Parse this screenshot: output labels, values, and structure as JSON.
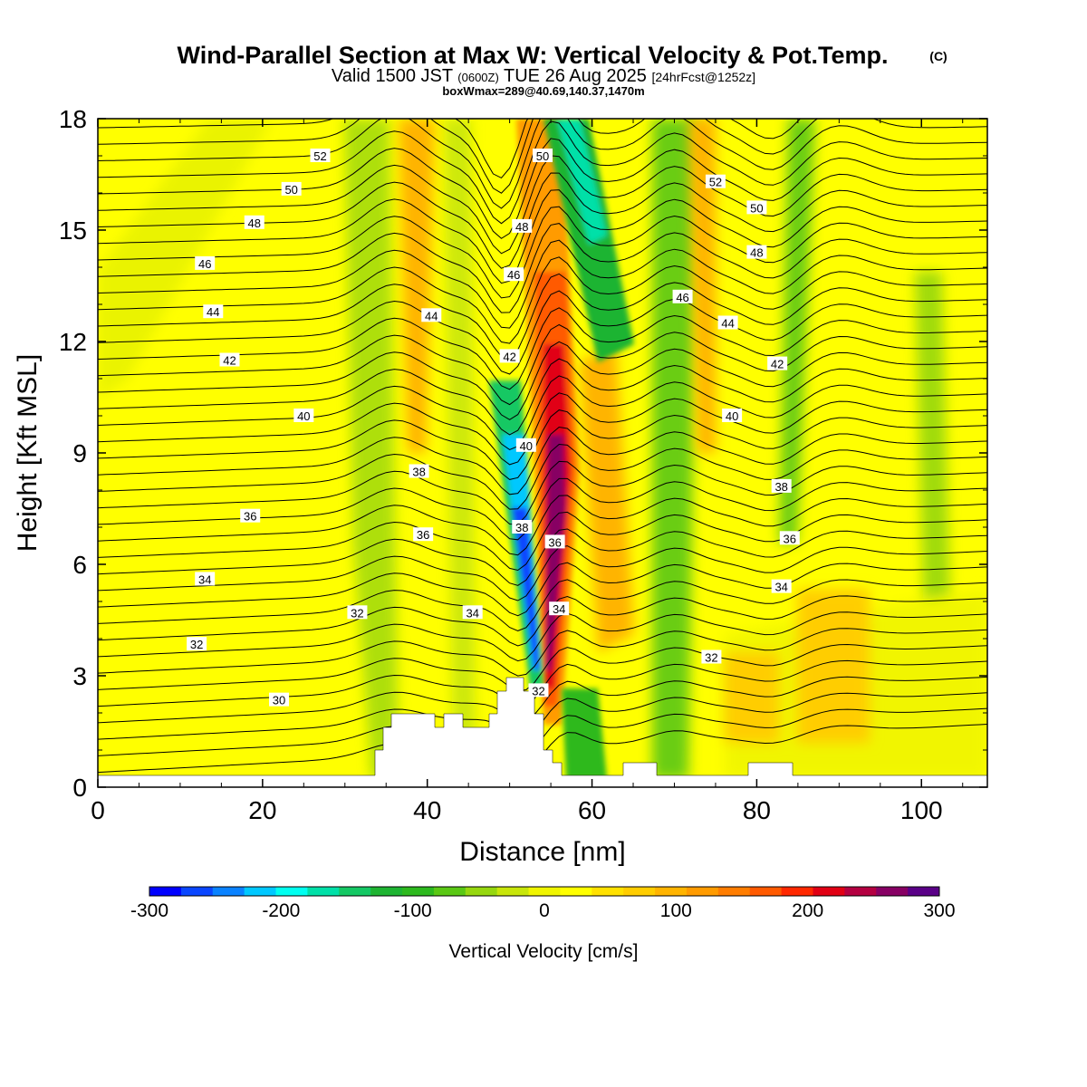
{
  "chart_data": {
    "type": "heatmap",
    "title": "Wind-Parallel Section at Max W: Vertical Velocity & Pot.Temp.",
    "title_mark": "(C)",
    "subtitle_main": "Valid 1500 JST",
    "subtitle_zulu": "(0600Z)",
    "subtitle_date": "TUE 26 Aug 2025",
    "subtitle_fcst": "[24hrFcst@1252z]",
    "info_line": "boxWmax=289@40.69,140.37,1470m",
    "xlabel": "Distance [nm]",
    "ylabel": "Height [Kft MSL]",
    "xlim": [
      0,
      108
    ],
    "ylim": [
      0,
      18
    ],
    "x_ticks": [
      "0",
      "20",
      "40",
      "60",
      "80",
      "100"
    ],
    "y_ticks": [
      "0",
      "3",
      "6",
      "9",
      "12",
      "15",
      "18"
    ],
    "colorbar": {
      "label": "Vertical Velocity [cm/s]",
      "range": [
        -300,
        300
      ],
      "tick_labels": [
        "-300",
        "-200",
        "-100",
        "0",
        "100",
        "200",
        "300"
      ],
      "colors": [
        "#0000ff",
        "#0a46ff",
        "#0a82ff",
        "#00c8ff",
        "#00fff0",
        "#00e0a8",
        "#14c864",
        "#1eb432",
        "#2db91e",
        "#5ac814",
        "#96d70f",
        "#c8e60a",
        "#f0f500",
        "#ffff00",
        "#ffe100",
        "#ffcd00",
        "#ffb400",
        "#ff9b00",
        "#ff7d00",
        "#ff5a00",
        "#ff2800",
        "#e10014",
        "#b40041",
        "#870064",
        "#5a0087"
      ]
    },
    "theta_contour_labels": [
      "30",
      "32",
      "34",
      "36",
      "38",
      "40",
      "42",
      "44",
      "46",
      "48",
      "50",
      "52"
    ],
    "updraft_core": {
      "x": 55,
      "height_kft": [
        2,
        11
      ],
      "max_cm_s": 289
    },
    "downdraft_core": {
      "x": 52,
      "height_kft": [
        3,
        7
      ],
      "min_cm_s": -300
    },
    "terrain_peak": {
      "x": 52,
      "height_kft": 3
    }
  },
  "colors": {
    "background": "#ffff00",
    "axis": "#000000"
  }
}
